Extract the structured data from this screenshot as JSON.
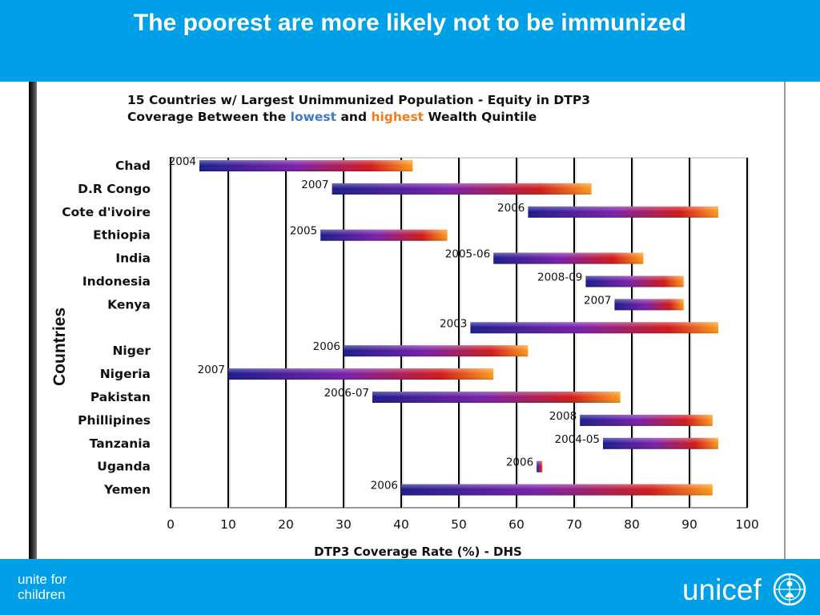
{
  "slide": {
    "title": "The poorest are more likely not to be immunized"
  },
  "chart_data": {
    "type": "bar",
    "subtype": "floating-range",
    "title_line1": "15 Countries w/ Largest Unimmunized Population - Equity in DTP3",
    "title_line2": {
      "prefix": "Coverage Between the ",
      "low": "lowest",
      "mid": " and ",
      "high": "highest",
      "suffix": " Wealth Quintile"
    },
    "xlabel": "DTP3 Coverage Rate (%) - DHS",
    "ylabel": "Countries",
    "xlim": [
      0,
      100
    ],
    "xticks": [
      0,
      10,
      20,
      30,
      40,
      50,
      60,
      70,
      80,
      90,
      100
    ],
    "grid": true,
    "series_names": [
      "lowest",
      "highest"
    ],
    "rows": [
      {
        "country": "Chad",
        "year": "2004",
        "lowest": 5,
        "highest": 42
      },
      {
        "country": "D.R Congo",
        "year": "2007",
        "lowest": 28,
        "highest": 73
      },
      {
        "country": "Cote d'ivoire",
        "year": "2006",
        "lowest": 62,
        "highest": 95
      },
      {
        "country": "Ethiopia",
        "year": "2005",
        "lowest": 26,
        "highest": 48
      },
      {
        "country": "India",
        "year": "2005-06",
        "lowest": 56,
        "highest": 82
      },
      {
        "country": "Indonesia",
        "year": "2008-09",
        "lowest": 72,
        "highest": 89
      },
      {
        "country": "Kenya",
        "year": "2007",
        "lowest": 77,
        "highest": 89
      },
      {
        "country": "",
        "year": "2003",
        "lowest": 52,
        "highest": 95
      },
      {
        "country": "Niger",
        "year": "2006",
        "lowest": 30,
        "highest": 62
      },
      {
        "country": "Nigeria",
        "year": "2007",
        "lowest": 10,
        "highest": 56
      },
      {
        "country": "Pakistan",
        "year": "2006-07",
        "lowest": 35,
        "highest": 78
      },
      {
        "country": "Phillipines",
        "year": "2008",
        "lowest": 71,
        "highest": 94
      },
      {
        "country": "Tanzania",
        "year": "2004-05",
        "lowest": 75,
        "highest": 95
      },
      {
        "country": "Uganda",
        "year": "2006",
        "lowest": 63.5,
        "highest": 64.5
      },
      {
        "country": "Yemen",
        "year": "2006",
        "lowest": 40,
        "highest": 94
      }
    ],
    "colors": {
      "low_end": "#1a1a8c",
      "mid": "#7a1ea8",
      "red": "#d01818",
      "high_end": "#ff9a1a"
    }
  },
  "footer": {
    "tagline_line1": "unite for",
    "tagline_line2": "children",
    "logo_text": "unicef"
  }
}
